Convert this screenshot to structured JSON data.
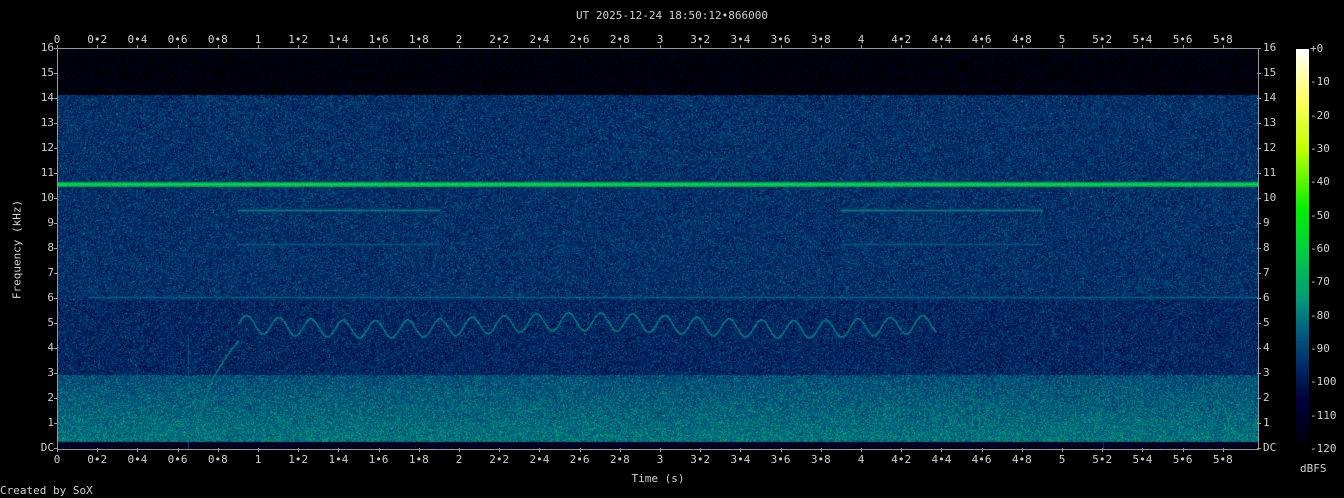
{
  "chart_data": {
    "type": "heatmap",
    "title": "UT 2025-12-24 18:50:12•866000",
    "xlabel": "Time (s)",
    "ylabel": "Frequency (kHz)",
    "xlim": [
      0,
      5.97
    ],
    "ylim": [
      0,
      16
    ],
    "x_ticks": [
      {
        "v": 0,
        "label": "0"
      },
      {
        "v": 0.2,
        "label": "0•2"
      },
      {
        "v": 0.4,
        "label": "0•4"
      },
      {
        "v": 0.6,
        "label": "0•6"
      },
      {
        "v": 0.8,
        "label": "0•8"
      },
      {
        "v": 1,
        "label": "1"
      },
      {
        "v": 1.2,
        "label": "1•2"
      },
      {
        "v": 1.4,
        "label": "1•4"
      },
      {
        "v": 1.6,
        "label": "1•6"
      },
      {
        "v": 1.8,
        "label": "1•8"
      },
      {
        "v": 2,
        "label": "2"
      },
      {
        "v": 2.2,
        "label": "2•2"
      },
      {
        "v": 2.4,
        "label": "2•4"
      },
      {
        "v": 2.6,
        "label": "2•6"
      },
      {
        "v": 2.8,
        "label": "2•8"
      },
      {
        "v": 3,
        "label": "3"
      },
      {
        "v": 3.2,
        "label": "3•2"
      },
      {
        "v": 3.4,
        "label": "3•4"
      },
      {
        "v": 3.6,
        "label": "3•6"
      },
      {
        "v": 3.8,
        "label": "3•8"
      },
      {
        "v": 4,
        "label": "4"
      },
      {
        "v": 4.2,
        "label": "4•2"
      },
      {
        "v": 4.4,
        "label": "4•4"
      },
      {
        "v": 4.6,
        "label": "4•6"
      },
      {
        "v": 4.8,
        "label": "4•8"
      },
      {
        "v": 5,
        "label": "5"
      },
      {
        "v": 5.2,
        "label": "5•2"
      },
      {
        "v": 5.4,
        "label": "5•4"
      },
      {
        "v": 5.6,
        "label": "5•6"
      },
      {
        "v": 5.8,
        "label": "5•8"
      }
    ],
    "y_ticks": [
      {
        "v": 0,
        "label": "DC"
      },
      {
        "v": 1,
        "label": "1"
      },
      {
        "v": 2,
        "label": "2"
      },
      {
        "v": 3,
        "label": "3"
      },
      {
        "v": 4,
        "label": "4"
      },
      {
        "v": 5,
        "label": "5"
      },
      {
        "v": 6,
        "label": "6"
      },
      {
        "v": 7,
        "label": "7"
      },
      {
        "v": 8,
        "label": "8"
      },
      {
        "v": 9,
        "label": "9"
      },
      {
        "v": 10,
        "label": "10"
      },
      {
        "v": 11,
        "label": "11"
      },
      {
        "v": 12,
        "label": "12"
      },
      {
        "v": 13,
        "label": "13"
      },
      {
        "v": 14,
        "label": "14"
      },
      {
        "v": 15,
        "label": "15"
      },
      {
        "v": 16,
        "label": "16"
      }
    ],
    "colorbar": {
      "label": "dBFS",
      "range": [
        -120,
        0
      ],
      "ticks": [
        {
          "v": 0,
          "label": "+0"
        },
        {
          "v": -10,
          "label": "-10"
        },
        {
          "v": -20,
          "label": "-20"
        },
        {
          "v": -30,
          "label": "-30"
        },
        {
          "v": -40,
          "label": "-40"
        },
        {
          "v": -50,
          "label": "-50"
        },
        {
          "v": -60,
          "label": "-60"
        },
        {
          "v": -70,
          "label": "-70"
        },
        {
          "v": -80,
          "label": "-80"
        },
        {
          "v": -90,
          "label": "-90"
        },
        {
          "v": -100,
          "label": "-100"
        },
        {
          "v": -110,
          "label": "-110"
        },
        {
          "v": -120,
          "label": "-120"
        }
      ],
      "stops": [
        {
          "db": -120,
          "color": "#000000"
        },
        {
          "db": -105,
          "color": "#00003c"
        },
        {
          "db": -95,
          "color": "#002a66"
        },
        {
          "db": -85,
          "color": "#005c80"
        },
        {
          "db": -75,
          "color": "#009a78"
        },
        {
          "db": -60,
          "color": "#00d040"
        },
        {
          "db": -48,
          "color": "#00f000"
        },
        {
          "db": -30,
          "color": "#c0ff00"
        },
        {
          "db": -15,
          "color": "#ffff60"
        },
        {
          "db": 0,
          "color": "#ffffff"
        }
      ]
    },
    "background_levels_db": [
      {
        "from_khz": 0,
        "to_khz": 0.3,
        "db": -112
      },
      {
        "from_khz": 0.3,
        "to_khz": 3,
        "db": -88
      },
      {
        "from_khz": 3,
        "to_khz": 6,
        "db": -96
      },
      {
        "from_khz": 6,
        "to_khz": 14.2,
        "db": -94
      },
      {
        "from_khz": 14.2,
        "to_khz": 16,
        "db": -118
      }
    ],
    "features": [
      {
        "kind": "tone",
        "khz": 10.6,
        "t": [
          0,
          5.97
        ],
        "db": -55
      },
      {
        "kind": "tone",
        "khz": 6.05,
        "t": [
          0.15,
          5.97
        ],
        "db": -85
      },
      {
        "kind": "tone",
        "khz": 9.55,
        "t": [
          0.9,
          1.9
        ],
        "db": -80
      },
      {
        "kind": "tone",
        "khz": 8.2,
        "t": [
          0.9,
          1.9
        ],
        "db": -86
      },
      {
        "kind": "tone",
        "khz": 9.55,
        "t": [
          3.9,
          4.9
        ],
        "db": -80
      },
      {
        "kind": "tone",
        "khz": 8.2,
        "t": [
          3.9,
          4.9
        ],
        "db": -86
      },
      {
        "kind": "click",
        "t": 0.65,
        "khz": [
          0,
          4.6
        ],
        "db": -88
      },
      {
        "kind": "click",
        "t": 5.2,
        "khz": [
          0,
          5.8
        ],
        "db": -90
      }
    ],
    "wavy_tone": {
      "t": [
        0.7,
        4.37
      ],
      "rise_end_s": 0.9,
      "start_khz": 0.5,
      "center_khz": 4.95,
      "amplitude_khz": 0.35,
      "period_s": 0.16,
      "db": -82
    }
  },
  "footer": {
    "created_by": "Created by SoX"
  }
}
